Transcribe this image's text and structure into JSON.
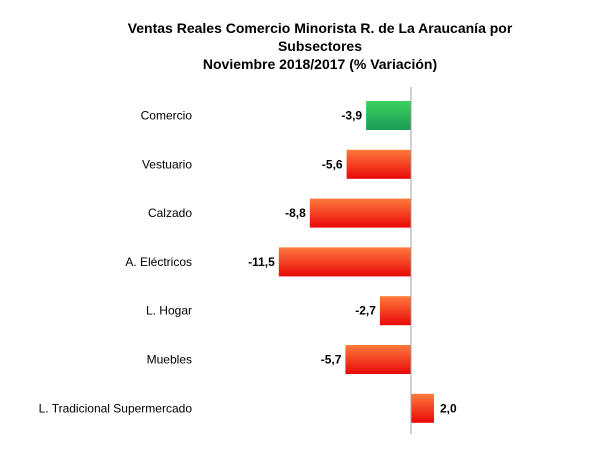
{
  "chart_data": {
    "type": "bar",
    "orientation": "horizontal",
    "title": [
      "Ventas Reales Comercio Minorista R. de La Araucanía por",
      "Subsectores",
      "Noviembre 2018/2017 (% Variación)"
    ],
    "categories": [
      "Comercio",
      "Vestuario",
      "Calzado",
      "A. Eléctricos",
      "L. Hogar",
      "Muebles",
      "L. Tradicional Supermercado"
    ],
    "values": [
      -3.9,
      -5.6,
      -8.8,
      -11.5,
      -2.7,
      -5.7,
      2.0
    ],
    "value_labels": [
      "-3,9",
      "-5,6",
      "-8,8",
      "-11,5",
      "-2,7",
      "-5,7",
      "2,0"
    ],
    "xlim": [
      -12,
      2
    ],
    "gridlines": false,
    "legend": "none",
    "colors": {
      "highlight": [
        "#3ad25e",
        "#1c9a56"
      ],
      "default": [
        "#ff7a3c",
        "#e80808"
      ]
    },
    "highlight_index": 0
  }
}
